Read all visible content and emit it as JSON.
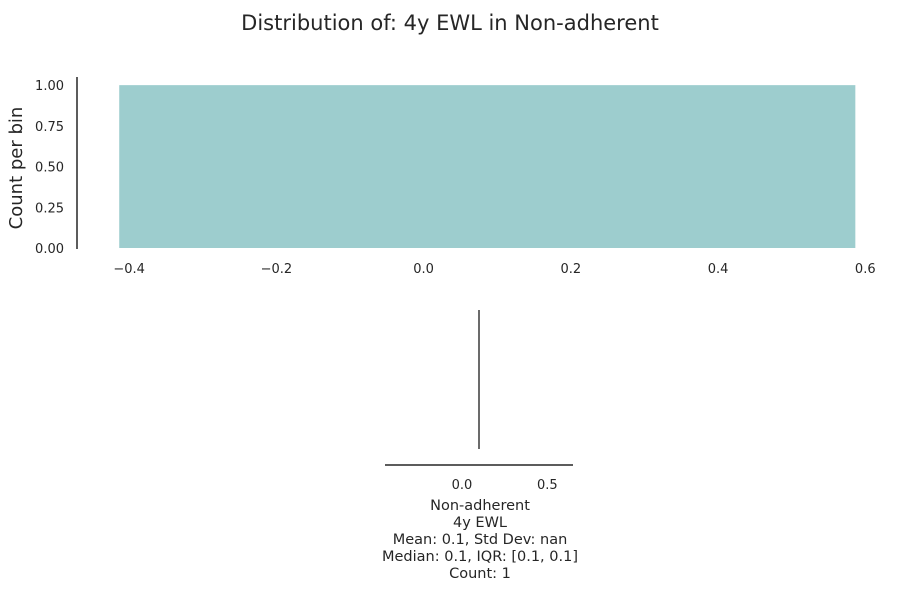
{
  "chart_data": [
    {
      "type": "bar",
      "title": "Distribution of: 4y EWL in Non-adherent",
      "ylabel": "Count per bin",
      "xlabel": "",
      "xlim": [
        -0.46,
        0.62
      ],
      "ylim": [
        0,
        1.05
      ],
      "xticks": [
        "−0.4",
        "−0.2",
        "0.0",
        "0.2",
        "0.4",
        "0.6"
      ],
      "xtick_values": [
        -0.4,
        -0.2,
        0.0,
        0.2,
        0.4,
        0.6
      ],
      "yticks": [
        "0.00",
        "0.25",
        "0.50",
        "0.75",
        "1.00"
      ],
      "ytick_values": [
        0,
        0.25,
        0.5,
        0.75,
        1.0
      ],
      "bins": [
        {
          "x0": -0.4135,
          "x1": 0.5865,
          "count": 1
        }
      ],
      "bar_color": "#9dcdce",
      "grid": false
    },
    {
      "type": "box",
      "xlim": [
        -0.45,
        0.65
      ],
      "xticks": [
        "0.0",
        "0.5"
      ],
      "xtick_values": [
        0.0,
        0.5
      ],
      "values": [
        0.1
      ],
      "line_color": "#6b6b6b",
      "labels": {
        "group": "Non-adherent",
        "variable": "4y EWL",
        "mean_std": "Mean: 0.1, Std Dev: nan",
        "median_iqr": "Median: 0.1, IQR: [0.1, 0.1]",
        "count": "Count: 1"
      }
    }
  ]
}
